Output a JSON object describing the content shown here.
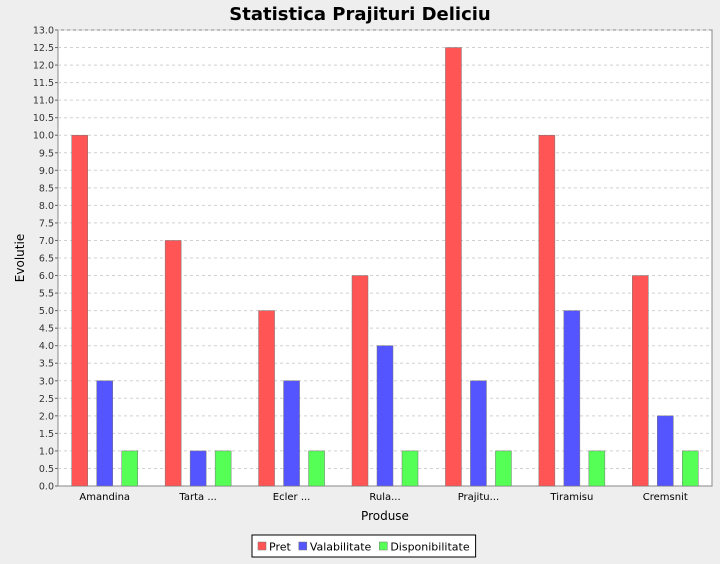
{
  "chart_data": {
    "type": "bar",
    "title": "Statistica Prajituri Deliciu",
    "xlabel": "Produse",
    "ylabel": "Evolutie",
    "categories": [
      "Amandina",
      "Tarta ...",
      "Ecler ...",
      "Rula...",
      "Prajitu...",
      "Tiramisu",
      "Cremsnit"
    ],
    "series": [
      {
        "name": "Pret",
        "color": "#ff5555",
        "values": [
          10,
          7,
          5,
          6,
          12.5,
          10,
          6
        ]
      },
      {
        "name": "Valabilitate",
        "color": "#5555ff",
        "values": [
          3,
          1,
          3,
          4,
          3,
          5,
          2
        ]
      },
      {
        "name": "Disponibilitate",
        "color": "#55ff55",
        "values": [
          1,
          1,
          1,
          1,
          1,
          1,
          1
        ]
      }
    ],
    "ylim": [
      0,
      13
    ],
    "ytick_step": 0.5,
    "grid": true,
    "legend_position": "bottom"
  }
}
